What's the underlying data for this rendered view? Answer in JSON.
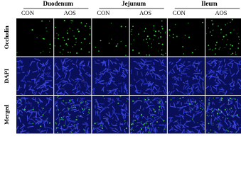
{
  "groups": [
    {
      "label": "Duodenum",
      "columns": [
        "CON",
        "AOS"
      ]
    },
    {
      "label": "Jejunum",
      "columns": [
        "CON",
        "AOS"
      ]
    },
    {
      "label": "Ileum",
      "columns": [
        "CON",
        "AOS"
      ]
    }
  ],
  "rows": [
    "Occludin",
    "DAPI",
    "Merged"
  ]
}
